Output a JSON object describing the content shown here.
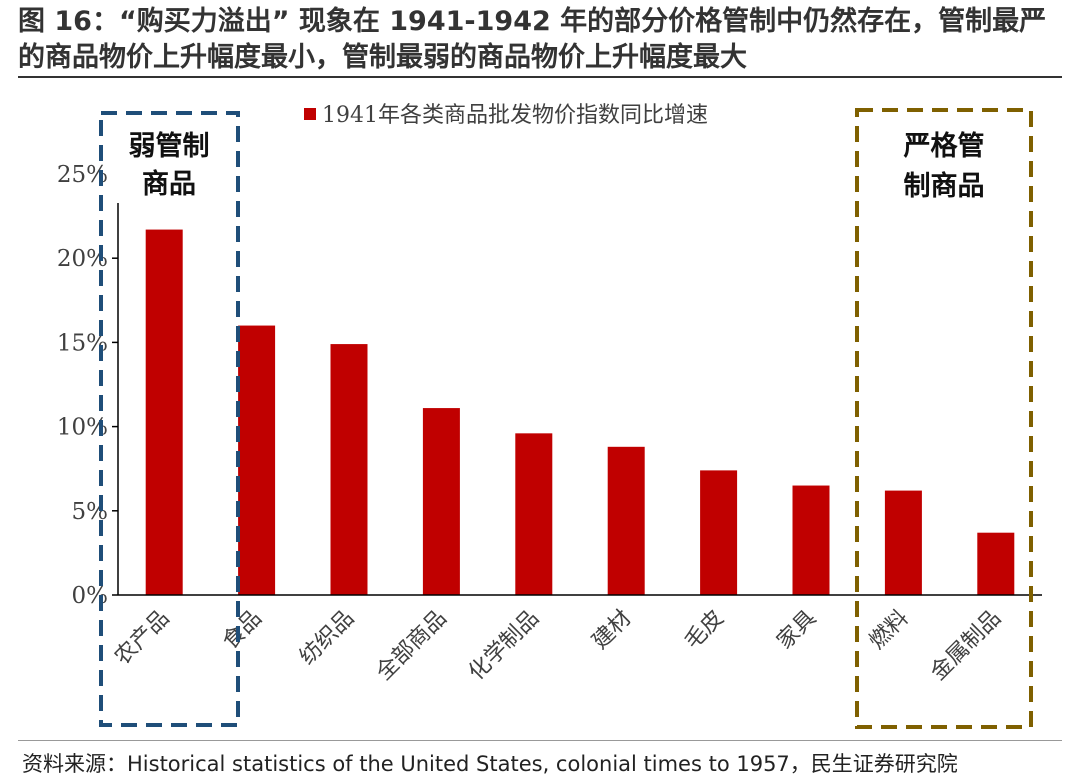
{
  "title": "图 16：“购买力溢出” 现象在 1941-1942 年的部分价格管制中仍然存在，管制最严的商品物价上升幅度最小，管制最弱的商品物价上升幅度最大",
  "source": "资料来源：Historical statistics of the United States, colonial times to 1957，民生证券研究院",
  "colors": {
    "bar": "#c00000",
    "weak_box": "#1f4e79",
    "strict_box": "#7f6000"
  },
  "groups": {
    "weak": {
      "line1": "弱管制",
      "line2": "商品"
    },
    "strict": {
      "line1": "严格管",
      "line2": "制商品"
    }
  },
  "chart_data": {
    "type": "bar",
    "categories": [
      "农产品",
      "食品",
      "纺织品",
      "全部商品",
      "化学制品",
      "建材",
      "毛皮",
      "家具",
      "燃料",
      "金属制品"
    ],
    "series": [
      {
        "name": "1941年各类商品批发物价指数同比增速",
        "values": [
          21.7,
          16.0,
          14.9,
          11.1,
          9.6,
          8.8,
          7.4,
          6.5,
          6.2,
          3.7
        ]
      }
    ],
    "ylim": [
      0,
      25
    ],
    "yticks": [
      "0%",
      "5%",
      "10%",
      "15%",
      "20%",
      "25%"
    ],
    "legend": "top-center",
    "grid": false
  }
}
